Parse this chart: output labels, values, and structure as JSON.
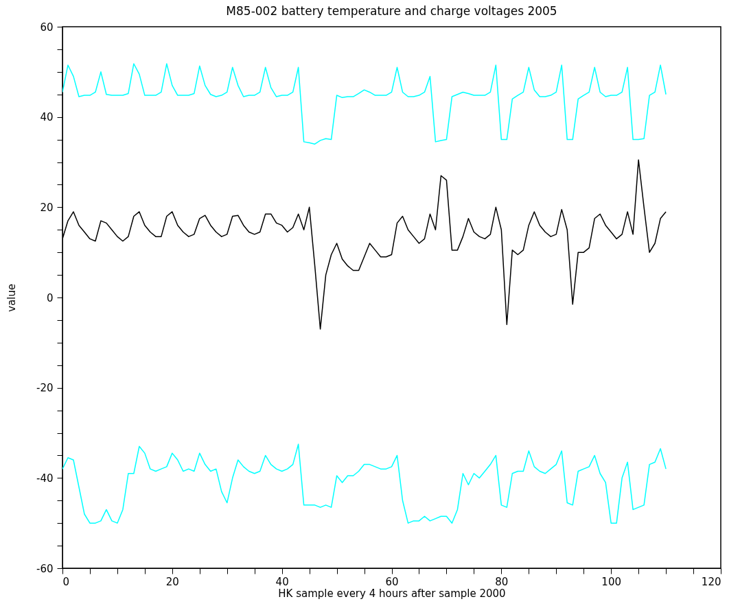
{
  "chart_data": {
    "type": "line",
    "title": "M85-002 battery temperature and charge voltages 2005",
    "xlabel": "HK sample every 4 hours after sample 2000",
    "ylabel": "value",
    "x": [
      0,
      1,
      2,
      3,
      4,
      5,
      6,
      7,
      8,
      9,
      10,
      11,
      12,
      13,
      14,
      15,
      16,
      17,
      18,
      19,
      20,
      21,
      22,
      23,
      24,
      25,
      26,
      27,
      28,
      29,
      30,
      31,
      32,
      33,
      34,
      35,
      36,
      37,
      38,
      39,
      40,
      41,
      42,
      43,
      44,
      45,
      46,
      47,
      48,
      49,
      50,
      51,
      52,
      53,
      54,
      55,
      56,
      57,
      58,
      59,
      60,
      61,
      62,
      63,
      64,
      65,
      66,
      67,
      68,
      69,
      70,
      71,
      72,
      73,
      74,
      75,
      76,
      77,
      78,
      79,
      80,
      81,
      82,
      83,
      84,
      85,
      86,
      87,
      88,
      89,
      90,
      91,
      92,
      93,
      94,
      95,
      96,
      97,
      98,
      99,
      100,
      101,
      102,
      103,
      104,
      105,
      106,
      107,
      108,
      109,
      110
    ],
    "series": [
      {
        "color": "#00ffff",
        "values": [
          45.5,
          51.5,
          49,
          44.5,
          44.8,
          44.8,
          45.5,
          50,
          45,
          44.8,
          44.8,
          44.8,
          45.2,
          51.8,
          49.5,
          44.8,
          44.8,
          44.8,
          45.5,
          51.8,
          47,
          44.8,
          44.8,
          44.8,
          45.2,
          51.3,
          47,
          45,
          44.5,
          44.8,
          45.5,
          51,
          47,
          44.5,
          44.8,
          44.8,
          45.5,
          51,
          46.5,
          44.5,
          44.8,
          44.8,
          45.5,
          51,
          34.5,
          34.3,
          34,
          34.8,
          35.2,
          35,
          44.8,
          44.3,
          44.5,
          44.5,
          45.2,
          46,
          45.5,
          44.8,
          44.8,
          44.8,
          45.5,
          51,
          45.5,
          44.5,
          44.5,
          44.8,
          45.5,
          49,
          34.5,
          34.8,
          35,
          44.5,
          45,
          45.5,
          45.2,
          44.8,
          44.8,
          44.8,
          45.5,
          51.5,
          35,
          35,
          44,
          44.8,
          45.5,
          51,
          46,
          44.5,
          44.5,
          44.8,
          45.5,
          51.5,
          35,
          35,
          44,
          44.8,
          45.5,
          51,
          45.5,
          44.5,
          44.8,
          44.8,
          45.5,
          51,
          35,
          35,
          35.2,
          44.8,
          45.5,
          51.5,
          45
        ]
      },
      {
        "color": "#000000",
        "values": [
          13,
          17,
          19,
          16,
          14.5,
          13,
          12.5,
          17,
          16.5,
          15,
          13.5,
          12.5,
          13.5,
          18,
          19,
          16,
          14.5,
          13.5,
          13.5,
          18,
          19,
          16,
          14.5,
          13.5,
          14,
          17.5,
          18.2,
          16,
          14.5,
          13.5,
          14,
          18,
          18.2,
          16,
          14.5,
          14,
          14.5,
          18.5,
          18.5,
          16.5,
          16,
          14.5,
          15.5,
          18.5,
          15,
          20,
          7,
          -7,
          5,
          9.5,
          12,
          8.5,
          7,
          6,
          6,
          9,
          12,
          10.5,
          9,
          9,
          9.5,
          16.5,
          18,
          15,
          13.5,
          12,
          13,
          18.5,
          15,
          27,
          26,
          10.5,
          10.5,
          13.5,
          17.5,
          14.5,
          13.5,
          13,
          14,
          20,
          15,
          -6,
          10.5,
          9.5,
          10.5,
          16,
          19,
          16,
          14.5,
          13.5,
          14,
          19.5,
          15,
          -1.5,
          10,
          10,
          11,
          17.5,
          18.5,
          16,
          14.5,
          13,
          14,
          19,
          14,
          30.5,
          20,
          10,
          12,
          17.5,
          19
        ]
      },
      {
        "color": "#00ffff",
        "values": [
          -38,
          -35.5,
          -36,
          -42,
          -48,
          -50,
          -50,
          -49.5,
          -47,
          -49.5,
          -50,
          -47,
          -39,
          -39,
          -33,
          -34.5,
          -38,
          -38.5,
          -38,
          -37.5,
          -34.5,
          -36,
          -38.5,
          -38,
          -38.5,
          -34.5,
          -37,
          -38.5,
          -38,
          -43,
          -45.5,
          -40,
          -36,
          -37.5,
          -38.5,
          -39,
          -38.5,
          -35,
          -37,
          -38,
          -38.5,
          -38,
          -37,
          -32.5,
          -46,
          -46,
          -46,
          -46.5,
          -46,
          -46.5,
          -39.5,
          -41,
          -39.5,
          -39.5,
          -38.5,
          -37,
          -37,
          -37.5,
          -38,
          -38,
          -37.5,
          -35,
          -45,
          -50,
          -49.5,
          -49.5,
          -48.5,
          -49.5,
          -49,
          -48.5,
          -48.5,
          -50,
          -47,
          -39,
          -41.5,
          -39,
          -40,
          -38.5,
          -37,
          -35,
          -46,
          -46.5,
          -39,
          -38.5,
          -38.5,
          -34,
          -37.5,
          -38.5,
          -39,
          -38,
          -37,
          -34,
          -45.5,
          -46,
          -38.5,
          -38,
          -37.5,
          -35,
          -39,
          -41,
          -50,
          -50,
          -40,
          -36.5,
          -47,
          -46.5,
          -46,
          -37,
          -36.5,
          -33.5,
          -38
        ]
      }
    ],
    "xlim": [
      0,
      120
    ],
    "xticks": [
      0,
      {
        "value": 5,
        "label": null
      },
      {
        "value": 10,
        "label": null
      },
      {
        "value": 15,
        "label": null
      },
      20,
      {
        "value": 25,
        "label": null
      },
      {
        "value": 30,
        "label": null
      },
      {
        "value": 35,
        "label": null
      },
      40,
      {
        "value": 45,
        "label": null
      },
      {
        "value": 50,
        "label": null
      },
      {
        "value": 55,
        "label": null
      },
      60,
      {
        "value": 65,
        "label": null
      },
      {
        "value": 70,
        "label": null
      },
      {
        "value": 75,
        "label": null
      },
      80,
      {
        "value": 85,
        "label": null
      },
      {
        "value": 90,
        "label": null
      },
      {
        "value": 95,
        "label": null
      },
      100,
      {
        "value": 105,
        "label": null
      },
      {
        "value": 110,
        "label": null
      },
      {
        "value": 115,
        "label": null
      },
      120
    ],
    "ylim": [
      -60,
      60
    ],
    "yticks": [
      -60,
      {
        "value": -55,
        "label": null
      },
      {
        "value": -50,
        "label": null
      },
      {
        "value": -45,
        "label": null
      },
      -40,
      {
        "value": -35,
        "label": null
      },
      {
        "value": -30,
        "label": null
      },
      {
        "value": -25,
        "label": null
      },
      -20,
      {
        "value": -15,
        "label": null
      },
      {
        "value": -10,
        "label": null
      },
      {
        "value": -5,
        "label": null
      },
      0,
      {
        "value": 5,
        "label": null
      },
      {
        "value": 10,
        "label": null
      },
      {
        "value": 15,
        "label": null
      },
      20,
      {
        "value": 25,
        "label": null
      },
      {
        "value": 30,
        "label": null
      },
      {
        "value": 35,
        "label": null
      },
      40,
      {
        "value": 45,
        "label": null
      },
      {
        "value": 50,
        "label": null
      },
      {
        "value": 55,
        "label": null
      },
      60
    ],
    "grid": false,
    "legend": false,
    "marker": "none",
    "line_style": "solid"
  }
}
